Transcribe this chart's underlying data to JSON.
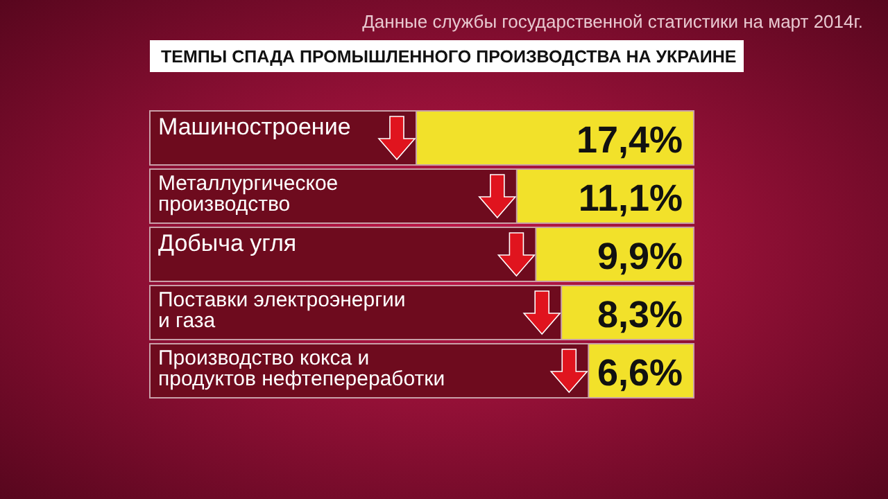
{
  "chart_data": {
    "type": "bar",
    "orientation": "horizontal",
    "title": "ТЕМПЫ СПАДА ПРОМЫШЛЕННОГО ПРОИЗВОДСТВА НА УКРАИНЕ",
    "annotations": [
      "Данные службы государственной статистики на март 2014г."
    ],
    "categories": [
      "Машиностроение",
      "Металлургическое производство",
      "Добыча угля",
      "Поставки электроэнергии и газа",
      "Производство кокса и продуктов нефтепереработки"
    ],
    "values": [
      17.4,
      11.1,
      9.9,
      8.3,
      6.6
    ],
    "value_labels": [
      "17,4%",
      "11,1%",
      "9,9%",
      "8,3%",
      "6,6%"
    ],
    "color": "#f2e12a"
  }
}
